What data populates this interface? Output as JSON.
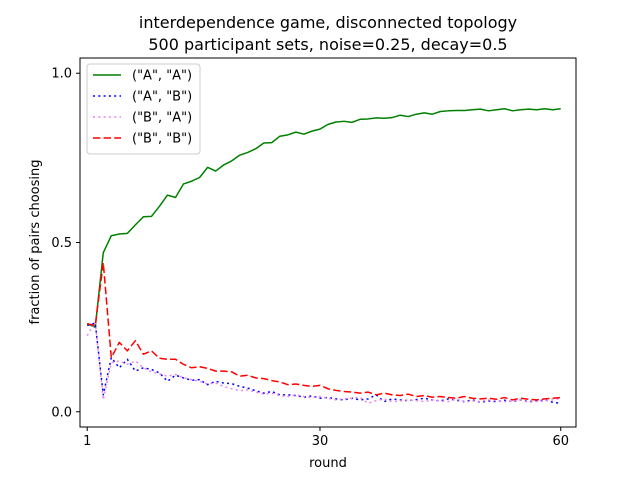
{
  "chart_data": {
    "type": "line",
    "title": "interdependence game, disconnected topology",
    "subtitle": "500 participant sets, noise=0.25, decay=0.5",
    "xlabel": "round",
    "ylabel": "fraction of pairs choosing",
    "xlim": [
      0.1,
      61.9
    ],
    "ylim": [
      -0.045,
      1.045
    ],
    "x_ticks": [
      1,
      30,
      60
    ],
    "y_ticks": [
      0.0,
      0.5,
      1.0
    ],
    "x_tick_labels": [
      "1",
      "30",
      "60"
    ],
    "y_tick_labels": [
      "0.0",
      "0.5",
      "1.0"
    ],
    "grid": false,
    "legend_position": "upper-left",
    "series": [
      {
        "name": "(\"A\", \"A\")",
        "color": "#008000",
        "dash": "solid",
        "values": [
          0.26,
          0.25,
          0.47,
          0.52,
          0.525,
          0.527,
          0.552,
          0.576,
          0.577,
          0.607,
          0.64,
          0.633,
          0.673,
          0.681,
          0.692,
          0.722,
          0.711,
          0.729,
          0.741,
          0.758,
          0.766,
          0.777,
          0.794,
          0.795,
          0.814,
          0.818,
          0.826,
          0.82,
          0.829,
          0.835,
          0.849,
          0.856,
          0.858,
          0.855,
          0.864,
          0.865,
          0.868,
          0.867,
          0.869,
          0.876,
          0.872,
          0.879,
          0.883,
          0.879,
          0.887,
          0.889,
          0.89,
          0.89,
          0.892,
          0.894,
          0.889,
          0.892,
          0.895,
          0.889,
          0.892,
          0.894,
          0.892,
          0.895,
          0.892,
          0.895
        ]
      },
      {
        "name": "(\"A\", \"B\")",
        "color": "#0000ff",
        "dash": "dotted",
        "values": [
          0.255,
          0.262,
          0.05,
          0.16,
          0.13,
          0.155,
          0.12,
          0.13,
          0.125,
          0.115,
          0.09,
          0.108,
          0.1,
          0.093,
          0.095,
          0.08,
          0.09,
          0.085,
          0.083,
          0.075,
          0.07,
          0.062,
          0.055,
          0.06,
          0.05,
          0.05,
          0.048,
          0.043,
          0.047,
          0.04,
          0.042,
          0.038,
          0.035,
          0.04,
          0.035,
          0.038,
          0.05,
          0.03,
          0.038,
          0.035,
          0.033,
          0.036,
          0.04,
          0.035,
          0.032,
          0.038,
          0.034,
          0.03,
          0.035,
          0.028,
          0.032,
          0.03,
          0.034,
          0.03,
          0.035,
          0.03,
          0.032,
          0.035,
          0.028,
          0.025
        ]
      },
      {
        "name": "(\"B\", \"A\")",
        "color": "#ee82ee",
        "dash": "dotted",
        "values": [
          0.225,
          0.265,
          0.035,
          0.145,
          0.15,
          0.14,
          0.15,
          0.13,
          0.118,
          0.112,
          0.105,
          0.11,
          0.1,
          0.095,
          0.09,
          0.082,
          0.085,
          0.075,
          0.068,
          0.062,
          0.065,
          0.058,
          0.052,
          0.055,
          0.048,
          0.045,
          0.05,
          0.045,
          0.042,
          0.045,
          0.04,
          0.035,
          0.038,
          0.04,
          0.042,
          0.025,
          0.033,
          0.038,
          0.03,
          0.032,
          0.035,
          0.033,
          0.03,
          0.035,
          0.032,
          0.03,
          0.038,
          0.028,
          0.032,
          0.03,
          0.035,
          0.033,
          0.03,
          0.032,
          0.035,
          0.028,
          0.03,
          0.032,
          0.035,
          0.04
        ]
      },
      {
        "name": "(\"B\", \"B\")",
        "color": "#ff0000",
        "dash": "dashed",
        "values": [
          0.26,
          0.255,
          0.44,
          0.16,
          0.205,
          0.18,
          0.21,
          0.17,
          0.18,
          0.158,
          0.155,
          0.155,
          0.14,
          0.13,
          0.133,
          0.128,
          0.12,
          0.12,
          0.118,
          0.105,
          0.108,
          0.1,
          0.098,
          0.092,
          0.088,
          0.08,
          0.082,
          0.078,
          0.075,
          0.078,
          0.068,
          0.063,
          0.06,
          0.058,
          0.055,
          0.058,
          0.05,
          0.055,
          0.05,
          0.048,
          0.052,
          0.045,
          0.048,
          0.043,
          0.045,
          0.042,
          0.04,
          0.045,
          0.04,
          0.038,
          0.04,
          0.037,
          0.042,
          0.035,
          0.04,
          0.037,
          0.035,
          0.038,
          0.04,
          0.042
        ]
      }
    ]
  }
}
